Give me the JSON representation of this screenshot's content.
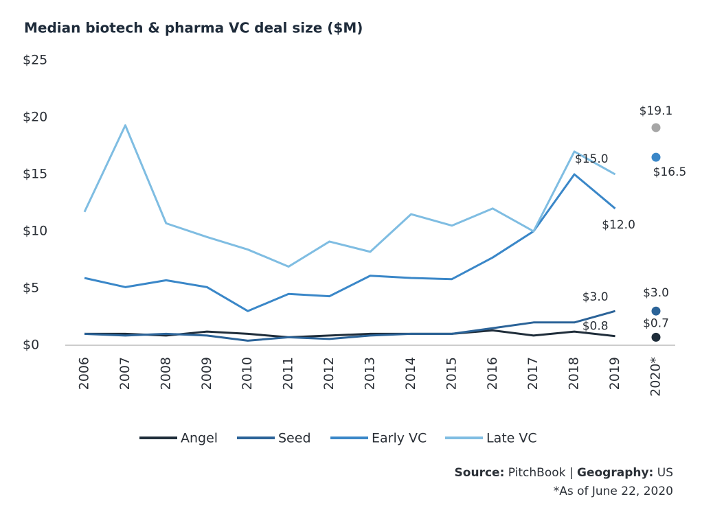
{
  "chart_data": {
    "type": "line",
    "title": "Median biotech & pharma VC deal size ($M)",
    "categories": [
      "2006",
      "2007",
      "2008",
      "2009",
      "2010",
      "2011",
      "2012",
      "2013",
      "2014",
      "2015",
      "2016",
      "2017",
      "2018",
      "2019",
      "2020*"
    ],
    "ylim": [
      0,
      25
    ],
    "yticks": [
      {
        "value": 0,
        "label": "$0"
      },
      {
        "value": 5,
        "label": "$5"
      },
      {
        "value": 10,
        "label": "$10"
      },
      {
        "value": 15,
        "label": "$15"
      },
      {
        "value": 20,
        "label": "$20"
      },
      {
        "value": 25,
        "label": "$25"
      }
    ],
    "legend": "bottom",
    "series": [
      {
        "name": "Angel",
        "color": "#1f2d3a",
        "values": [
          1.0,
          1.0,
          0.85,
          1.2,
          1.0,
          0.7,
          0.85,
          1.0,
          1.0,
          1.0,
          1.3,
          0.85,
          1.2,
          0.8,
          null
        ],
        "value_labels": [
          null,
          null,
          null,
          null,
          null,
          null,
          null,
          null,
          null,
          null,
          null,
          null,
          null,
          "$0.8",
          null
        ],
        "ytd": {
          "value": 0.7,
          "label": "$0.7",
          "color": "#1f2d3a"
        }
      },
      {
        "name": "Seed",
        "color": "#2b6398",
        "values": [
          1.0,
          0.85,
          1.0,
          0.85,
          0.4,
          0.7,
          0.55,
          0.85,
          1.0,
          1.0,
          1.5,
          2.0,
          2.0,
          3.0,
          null
        ],
        "value_labels": [
          null,
          null,
          null,
          null,
          null,
          null,
          null,
          null,
          null,
          null,
          null,
          null,
          null,
          "$3.0",
          null
        ],
        "ytd": {
          "value": 3.0,
          "label": "$3.0",
          "color": "#2b6398"
        }
      },
      {
        "name": "Early VC",
        "color": "#3a87c8",
        "values": [
          5.9,
          5.1,
          5.7,
          5.1,
          3.0,
          4.5,
          4.3,
          6.1,
          5.9,
          5.8,
          7.7,
          10.0,
          15.0,
          12.0,
          null
        ],
        "value_labels": [
          null,
          null,
          null,
          null,
          null,
          null,
          null,
          null,
          null,
          null,
          null,
          null,
          null,
          "$12.0",
          null
        ],
        "ytd": {
          "value": 16.5,
          "label": "$16.5",
          "color": "#3a87c8"
        }
      },
      {
        "name": "Late VC",
        "color": "#7fbde2",
        "values": [
          11.7,
          19.3,
          10.7,
          9.5,
          8.4,
          6.9,
          9.1,
          8.2,
          11.5,
          10.5,
          12.0,
          10.0,
          17.0,
          15.0,
          null
        ],
        "value_labels": [
          null,
          null,
          null,
          null,
          null,
          null,
          null,
          null,
          null,
          null,
          null,
          null,
          null,
          "$15.0",
          null
        ],
        "ytd": {
          "value": 19.1,
          "label": "$19.1",
          "color": "#a6a6a6"
        }
      }
    ],
    "source": {
      "label": "Source:",
      "text": "PitchBook |",
      "geo_label": "Geography:",
      "geo": "US"
    },
    "note": "*As of June 22, 2020"
  }
}
